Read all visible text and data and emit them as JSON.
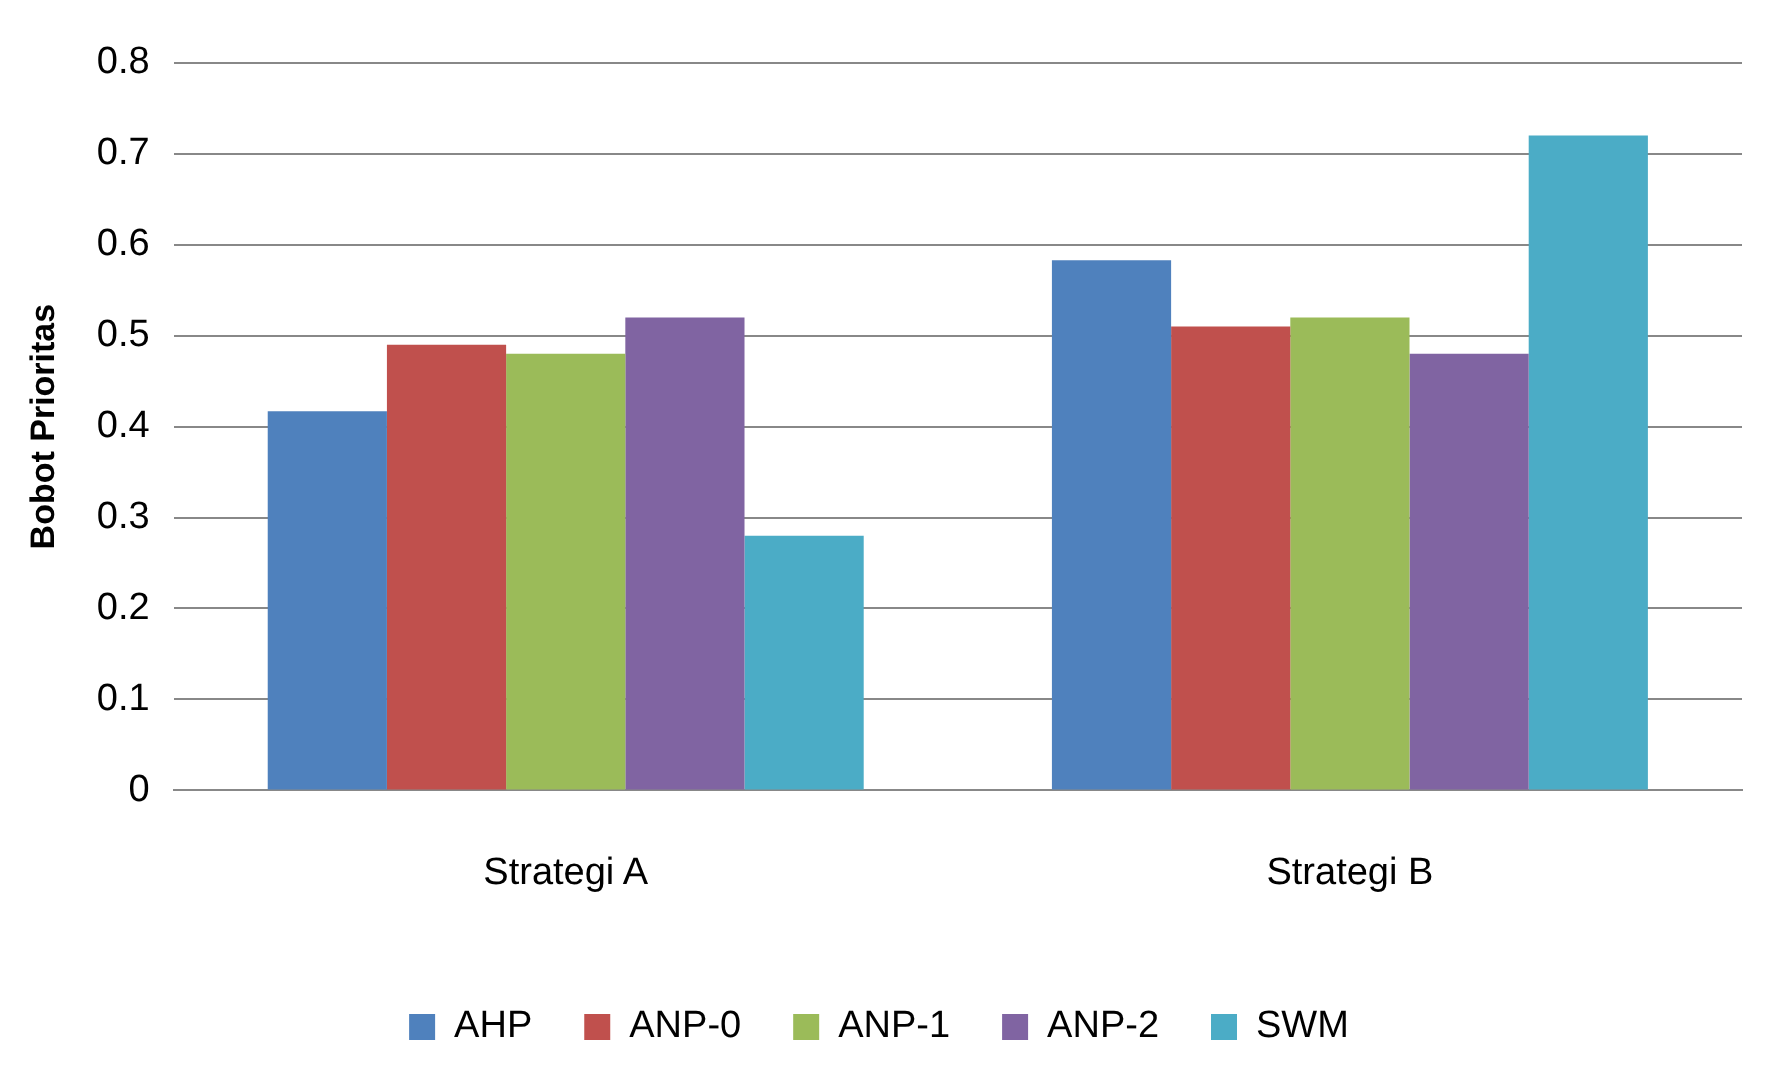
{
  "chart_data": {
    "type": "bar",
    "ylabel": "Bobot Prioritas",
    "categories": [
      "Strategi A",
      "Strategi B"
    ],
    "series": [
      {
        "name": "AHP",
        "color": "#4f81bd",
        "values": [
          0.417,
          0.583
        ]
      },
      {
        "name": "ANP-0",
        "color": "#c0504d",
        "values": [
          0.49,
          0.51
        ]
      },
      {
        "name": "ANP-1",
        "color": "#9bbb59",
        "values": [
          0.48,
          0.52
        ]
      },
      {
        "name": "ANP-2",
        "color": "#8064a2",
        "values": [
          0.52,
          0.48
        ]
      },
      {
        "name": "SWM",
        "color": "#4bacc6",
        "values": [
          0.28,
          0.72
        ]
      }
    ],
    "ylim": [
      0,
      0.8
    ],
    "yticks": [
      0,
      0.1,
      0.2,
      0.3,
      0.4,
      0.5,
      0.6,
      0.7,
      0.8
    ],
    "grid": "y",
    "legend": "bottom"
  }
}
